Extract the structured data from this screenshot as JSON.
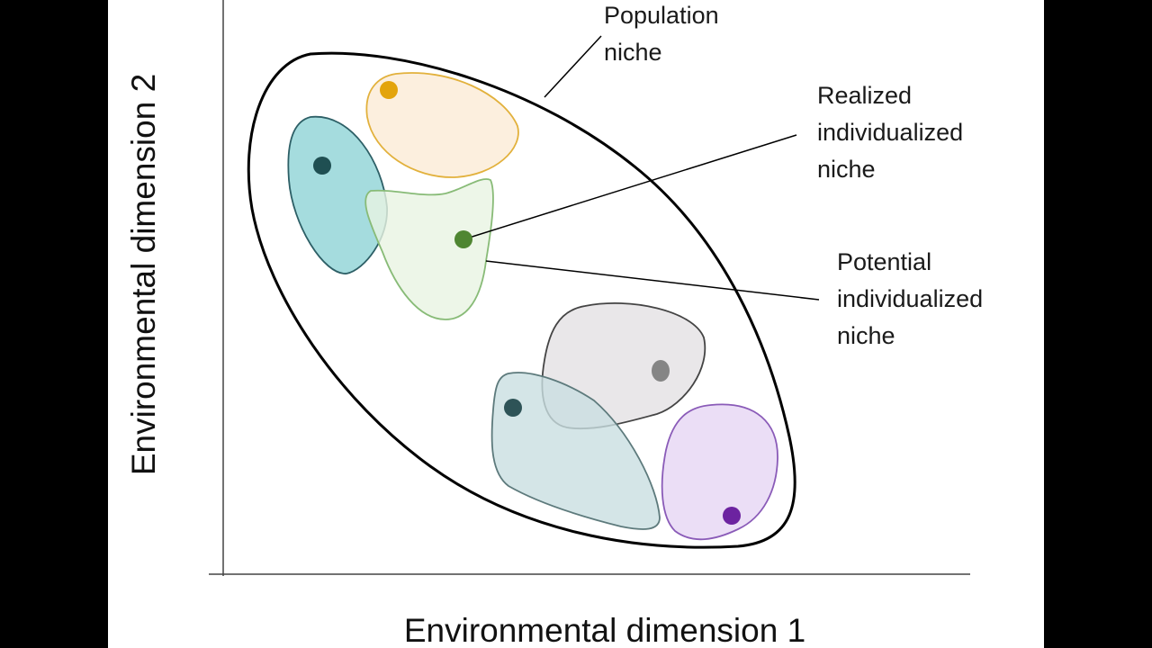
{
  "labels": {
    "population_niche": "Population\nniche",
    "realized_niche": "Realized\nindividualized\nniche",
    "potential_niche": "Potential\nindividualized\nniche",
    "x_axis": "Environmental dimension 1",
    "y_axis": "Environmental dimension 2"
  },
  "individuals": [
    {
      "name": "orange",
      "fill": "#fbebd6",
      "stroke": "#e2b13c",
      "dot": "#e3a40c"
    },
    {
      "name": "teal",
      "fill": "#8fd3d6",
      "stroke": "#2d5f66",
      "dot": "#1f4f52"
    },
    {
      "name": "green",
      "fill": "#e8f4e2",
      "stroke": "#88bb77",
      "dot": "#4f8632"
    },
    {
      "name": "grey",
      "fill": "#e3e1e3",
      "stroke": "#444444",
      "dot": "#858585"
    },
    {
      "name": "blue-grey",
      "fill": "#c9dfe1",
      "stroke": "#5d7a7c",
      "dot": "#2e5357"
    },
    {
      "name": "purple",
      "fill": "#e6d6f4",
      "stroke": "#8a5bb8",
      "dot": "#6c23a0"
    }
  ]
}
